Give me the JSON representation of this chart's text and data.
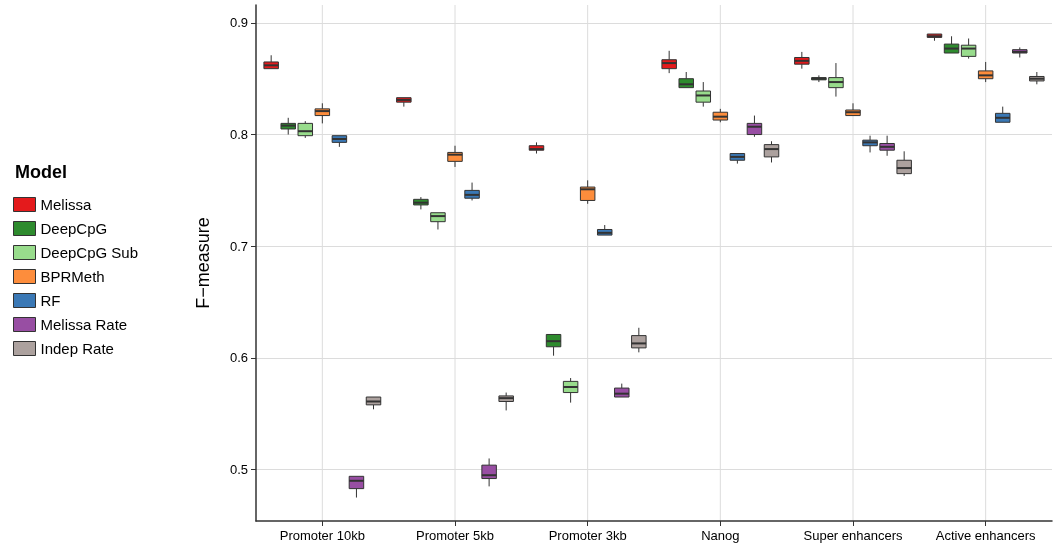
{
  "chart_data": {
    "type": "box",
    "ylabel": "F−measure",
    "legend_title": "Model",
    "legend": "left",
    "grid": true,
    "categories": [
      "Promoter 10kb",
      "Promoter 5kb",
      "Promoter 3kb",
      "Nanog",
      "Super enhancers",
      "Active enhancers"
    ],
    "ylim": [
      0.454,
      0.916
    ],
    "yticks": [
      0.5,
      0.6,
      0.7,
      0.8,
      0.9
    ],
    "series": [
      {
        "name": "Melissa",
        "color": "#e41a1c",
        "boxes": [
          {
            "low": 0.858,
            "q1": 0.859,
            "median": 0.862,
            "q3": 0.865,
            "high": 0.871
          },
          {
            "low": 0.825,
            "q1": 0.829,
            "median": 0.831,
            "q3": 0.833,
            "high": 0.834
          },
          {
            "low": 0.783,
            "q1": 0.786,
            "median": 0.787,
            "q3": 0.79,
            "high": 0.793
          },
          {
            "low": 0.855,
            "q1": 0.859,
            "median": 0.864,
            "q3": 0.867,
            "high": 0.875
          },
          {
            "low": 0.859,
            "q1": 0.863,
            "median": 0.866,
            "q3": 0.869,
            "high": 0.874
          },
          {
            "low": 0.884,
            "q1": 0.887,
            "median": 0.888,
            "q3": 0.89,
            "high": 0.891
          }
        ]
      },
      {
        "name": "DeepCpG",
        "color": "#2e8b2e",
        "boxes": [
          {
            "low": 0.8,
            "q1": 0.805,
            "median": 0.808,
            "q3": 0.81,
            "high": 0.815
          },
          {
            "low": 0.733,
            "q1": 0.737,
            "median": 0.739,
            "q3": 0.742,
            "high": 0.744
          },
          {
            "low": 0.602,
            "q1": 0.61,
            "median": 0.615,
            "q3": 0.621,
            "high": 0.622
          },
          {
            "low": 0.841,
            "q1": 0.842,
            "median": 0.845,
            "q3": 0.85,
            "high": 0.856
          },
          {
            "low": 0.847,
            "q1": 0.849,
            "median": 0.85,
            "q3": 0.851,
            "high": 0.853
          },
          {
            "low": 0.872,
            "q1": 0.873,
            "median": 0.877,
            "q3": 0.881,
            "high": 0.888
          }
        ]
      },
      {
        "name": "DeepCpG Sub",
        "color": "#98dc8c",
        "boxes": [
          {
            "low": 0.797,
            "q1": 0.799,
            "median": 0.803,
            "q3": 0.81,
            "high": 0.812
          },
          {
            "low": 0.715,
            "q1": 0.722,
            "median": 0.727,
            "q3": 0.73,
            "high": 0.731
          },
          {
            "low": 0.56,
            "q1": 0.569,
            "median": 0.574,
            "q3": 0.579,
            "high": 0.582
          },
          {
            "low": 0.825,
            "q1": 0.829,
            "median": 0.835,
            "q3": 0.839,
            "high": 0.847
          },
          {
            "low": 0.834,
            "q1": 0.842,
            "median": 0.847,
            "q3": 0.851,
            "high": 0.864
          },
          {
            "low": 0.868,
            "q1": 0.87,
            "median": 0.877,
            "q3": 0.88,
            "high": 0.886
          }
        ]
      },
      {
        "name": "BPRMeth",
        "color": "#fd8d3c",
        "boxes": [
          {
            "low": 0.81,
            "q1": 0.817,
            "median": 0.821,
            "q3": 0.823,
            "high": 0.828
          },
          {
            "low": 0.771,
            "q1": 0.776,
            "median": 0.782,
            "q3": 0.784,
            "high": 0.79
          },
          {
            "low": 0.738,
            "q1": 0.741,
            "median": 0.751,
            "q3": 0.753,
            "high": 0.759
          },
          {
            "low": 0.811,
            "q1": 0.813,
            "median": 0.816,
            "q3": 0.82,
            "high": 0.823
          },
          {
            "low": 0.816,
            "q1": 0.817,
            "median": 0.82,
            "q3": 0.822,
            "high": 0.828
          },
          {
            "low": 0.847,
            "q1": 0.85,
            "median": 0.853,
            "q3": 0.857,
            "high": 0.865
          }
        ]
      },
      {
        "name": "RF",
        "color": "#3a78b5",
        "boxes": [
          {
            "low": 0.789,
            "q1": 0.793,
            "median": 0.796,
            "q3": 0.799,
            "high": 0.8
          },
          {
            "low": 0.741,
            "q1": 0.743,
            "median": 0.746,
            "q3": 0.75,
            "high": 0.757
          },
          {
            "low": 0.709,
            "q1": 0.71,
            "median": 0.712,
            "q3": 0.715,
            "high": 0.719
          },
          {
            "low": 0.774,
            "q1": 0.777,
            "median": 0.78,
            "q3": 0.783,
            "high": 0.784
          },
          {
            "low": 0.784,
            "q1": 0.79,
            "median": 0.793,
            "q3": 0.795,
            "high": 0.799
          },
          {
            "low": 0.81,
            "q1": 0.811,
            "median": 0.815,
            "q3": 0.819,
            "high": 0.825
          }
        ]
      },
      {
        "name": "Melissa Rate",
        "color": "#984ea3",
        "boxes": [
          {
            "low": 0.475,
            "q1": 0.483,
            "median": 0.49,
            "q3": 0.494,
            "high": 0.495
          },
          {
            "low": 0.485,
            "q1": 0.492,
            "median": 0.495,
            "q3": 0.504,
            "high": 0.51
          },
          {
            "low": 0.564,
            "q1": 0.565,
            "median": 0.568,
            "q3": 0.573,
            "high": 0.577
          },
          {
            "low": 0.798,
            "q1": 0.8,
            "median": 0.807,
            "q3": 0.81,
            "high": 0.817
          },
          {
            "low": 0.781,
            "q1": 0.786,
            "median": 0.789,
            "q3": 0.792,
            "high": 0.799
          },
          {
            "low": 0.869,
            "q1": 0.873,
            "median": 0.874,
            "q3": 0.876,
            "high": 0.878
          }
        ]
      },
      {
        "name": "Indep Rate",
        "color": "#aca19e",
        "boxes": [
          {
            "low": 0.554,
            "q1": 0.558,
            "median": 0.561,
            "q3": 0.565,
            "high": 0.566
          },
          {
            "low": 0.553,
            "q1": 0.561,
            "median": 0.564,
            "q3": 0.566,
            "high": 0.569
          },
          {
            "low": 0.605,
            "q1": 0.609,
            "median": 0.613,
            "q3": 0.62,
            "high": 0.627
          },
          {
            "low": 0.775,
            "q1": 0.78,
            "median": 0.787,
            "q3": 0.791,
            "high": 0.794
          },
          {
            "low": 0.763,
            "q1": 0.765,
            "median": 0.77,
            "q3": 0.777,
            "high": 0.785
          },
          {
            "low": 0.845,
            "q1": 0.848,
            "median": 0.85,
            "q3": 0.852,
            "high": 0.856
          }
        ]
      }
    ]
  }
}
